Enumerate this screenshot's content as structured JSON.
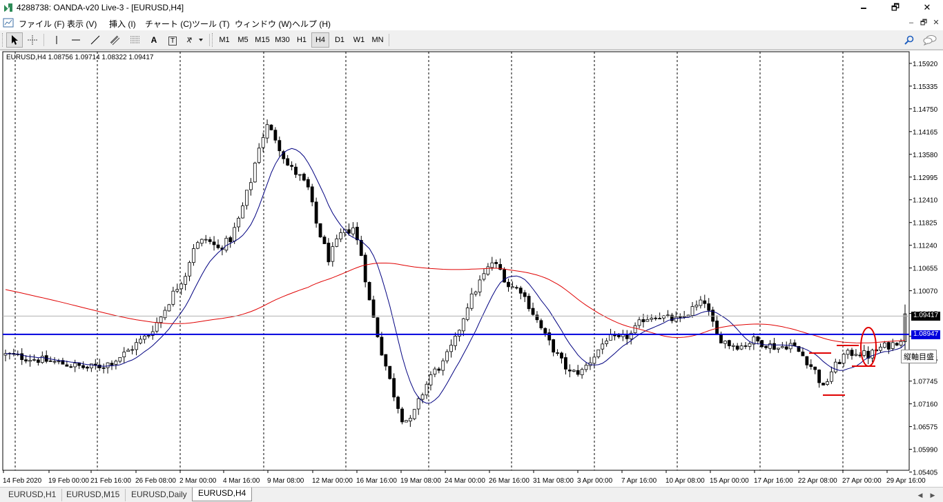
{
  "window": {
    "title": "4288738: OANDA-v20 Live-3 - [EURUSD,H4]",
    "minimize": "🗕",
    "maximize": "🗗",
    "close": "✕"
  },
  "menu": {
    "items": [
      "ファイル (F)",
      "表示 (V)",
      "挿入 (I)",
      "チャート (C)",
      "ツール (T)",
      "ウィンドウ (W)",
      "ヘルプ (H)"
    ],
    "mdi_minimize": "‒",
    "mdi_restore": "🗗",
    "mdi_close": "✕"
  },
  "toolbar": {
    "timeframes": [
      "M1",
      "M5",
      "M15",
      "M30",
      "H1",
      "H4",
      "D1",
      "W1",
      "MN"
    ],
    "active_timeframe": "H4",
    "text_tool": "A",
    "label_tool": "T"
  },
  "chart": {
    "info": "EURUSD,H4  1.08756 1.09714 1.08322 1.09417",
    "current_price_tag": "1.09417",
    "hline_price_tag": "1.08947",
    "crosshair_label": "縦軸目盛",
    "background": "#ffffff",
    "bull_color": "#000000",
    "ma_fast_color": "#000080",
    "ma_slow_color": "#e00000",
    "hline_color": "#0000dd"
  },
  "chart_data": {
    "type": "candlestick",
    "symbol": "EURUSD",
    "timeframe": "H4",
    "ohlc": {
      "open": 1.08756,
      "high": 1.09714,
      "low": 1.08322,
      "close": 1.09417
    },
    "ylim": [
      1.0545,
      1.1622
    ],
    "y_ticks": [
      1.1592,
      1.15335,
      1.1475,
      1.14165,
      1.1358,
      1.12995,
      1.1241,
      1.11825,
      1.1124,
      1.10655,
      1.1007,
      1.09485,
      1.089,
      1.08315,
      1.07745,
      1.0716,
      1.06575,
      1.0599,
      1.05405
    ],
    "x_labels": [
      "14 Feb 2020",
      "19 Feb 00:00",
      "21 Feb 16:00",
      "26 Feb 08:00",
      "2 Mar 00:00",
      "4 Mar 16:00",
      "9 Mar 08:00",
      "12 Mar 00:00",
      "16 Mar 16:00",
      "19 Mar 08:00",
      "24 Mar 00:00",
      "26 Mar 16:00",
      "31 Mar 08:00",
      "3 Apr 00:00",
      "7 Apr 16:00",
      "10 Apr 08:00",
      "15 Apr 00:00",
      "17 Apr 16:00",
      "22 Apr 08:00",
      "27 Apr 00:00",
      "29 Apr 16:00"
    ],
    "price_path": [
      [
        0,
        1.0842
      ],
      [
        8,
        1.083
      ],
      [
        15,
        1.0818
      ],
      [
        20,
        1.0808
      ],
      [
        24,
        1.0815
      ],
      [
        27,
        1.083
      ],
      [
        30,
        1.0852
      ],
      [
        32,
        1.087
      ],
      [
        35,
        1.0895
      ],
      [
        38,
        1.094
      ],
      [
        41,
        1.1
      ],
      [
        44,
        1.105
      ],
      [
        46,
        1.112
      ],
      [
        49,
        1.114
      ],
      [
        52,
        1.1115
      ],
      [
        55,
        1.114
      ],
      [
        57,
        1.119
      ],
      [
        60,
        1.129
      ],
      [
        62,
        1.138
      ],
      [
        64,
        1.143
      ],
      [
        66,
        1.14
      ],
      [
        69,
        1.133
      ],
      [
        72,
        1.13
      ],
      [
        74,
        1.127
      ],
      [
        76,
        1.118
      ],
      [
        79,
        1.109
      ],
      [
        82,
        1.115
      ],
      [
        85,
        1.117
      ],
      [
        87,
        1.11
      ],
      [
        89,
        1.098
      ],
      [
        92,
        1.085
      ],
      [
        95,
        1.074
      ],
      [
        97,
        1.068
      ],
      [
        99,
        1.067
      ],
      [
        101,
        1.072
      ],
      [
        104,
        1.079
      ],
      [
        107,
        1.082
      ],
      [
        110,
        1.088
      ],
      [
        113,
        1.097
      ],
      [
        116,
        1.103
      ],
      [
        119,
        1.108
      ],
      [
        121,
        1.106
      ],
      [
        123,
        1.102
      ],
      [
        126,
        1.101
      ],
      [
        129,
        1.095
      ],
      [
        132,
        1.089
      ],
      [
        135,
        1.084
      ],
      [
        138,
        1.0795
      ],
      [
        141,
        1.08
      ],
      [
        144,
        1.084
      ],
      [
        147,
        1.0885
      ],
      [
        150,
        1.088
      ],
      [
        153,
        1.0895
      ],
      [
        156,
        1.0935
      ],
      [
        159,
        1.0945
      ],
      [
        162,
        1.0935
      ],
      [
        165,
        1.093
      ],
      [
        168,
        1.096
      ],
      [
        171,
        1.098
      ],
      [
        174,
        1.089
      ],
      [
        177,
        1.087
      ],
      [
        180,
        1.0865
      ],
      [
        183,
        1.088
      ],
      [
        186,
        1.087
      ],
      [
        189,
        1.086
      ],
      [
        192,
        1.087
      ],
      [
        195,
        1.084
      ],
      [
        198,
        1.08
      ],
      [
        200,
        1.0755
      ],
      [
        202,
        1.08
      ],
      [
        205,
        1.084
      ],
      [
        208,
        1.085
      ],
      [
        211,
        1.084
      ],
      [
        214,
        1.086
      ],
      [
        217,
        1.087
      ],
      [
        219,
        1.0885
      ],
      [
        220,
        1.0942
      ]
    ],
    "hline": 1.08947,
    "annotations": [
      "red horizontal marks near 22–27 Apr",
      "red ellipse near 27 Apr"
    ]
  }
}
